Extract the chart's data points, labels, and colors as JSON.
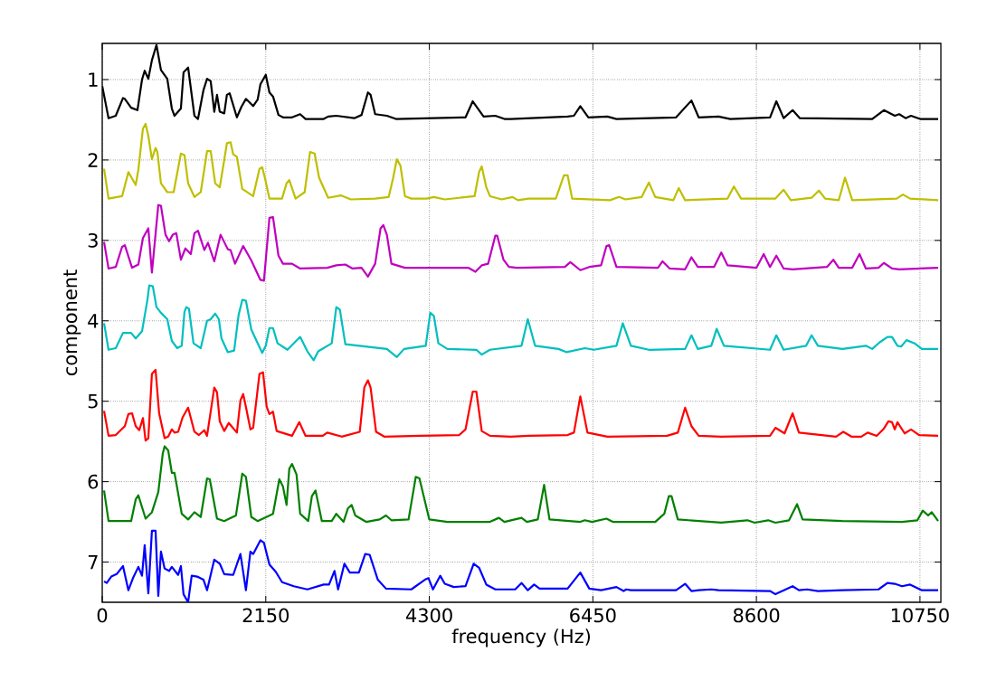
{
  "chart_data": {
    "type": "line",
    "xlabel": "frequency (Hz)",
    "ylabel": "component",
    "xlim": [
      0,
      11025
    ],
    "ylim": [
      7.5,
      0.55
    ],
    "xticks": [
      0,
      2150,
      4300,
      6450,
      8600,
      10750
    ],
    "yticks": [
      1,
      2,
      3,
      4,
      5,
      6,
      7
    ],
    "grid": true,
    "series": [
      {
        "color": "#000000",
        "x": [
          0,
          83,
          178,
          273,
          297,
          380,
          463,
          523,
          558,
          606,
          653,
          713,
          772,
          855,
          915,
          950,
          1034,
          1069,
          1129,
          1212,
          1259,
          1331,
          1378,
          1426,
          1473,
          1509,
          1545,
          1604,
          1639,
          1675,
          1770,
          1829,
          1889,
          1984,
          2043,
          2079,
          2150,
          2198,
          2245,
          2317,
          2376,
          2495,
          2602,
          2673,
          2911,
          2970,
          3077,
          3314,
          3409,
          3493,
          3528,
          3588,
          3742,
          3861,
          4776,
          4871,
          5013,
          5168,
          5287,
          5370,
          6118,
          6201,
          6285,
          6391,
          6641,
          6760,
          7544,
          7746,
          7841,
          8102,
          8257,
          8779,
          8862,
          8958,
          9076,
          9171,
          10122,
          10276,
          10419,
          10478,
          10561,
          10632,
          10751,
          10989
        ],
        "values": [
          1.08,
          1.48,
          1.45,
          1.23,
          1.24,
          1.35,
          1.38,
          1.0,
          0.89,
          0.99,
          0.76,
          0.57,
          0.88,
          0.99,
          1.36,
          1.45,
          1.36,
          0.91,
          0.85,
          1.45,
          1.49,
          1.13,
          0.99,
          1.02,
          1.4,
          1.19,
          1.4,
          1.42,
          1.19,
          1.17,
          1.47,
          1.34,
          1.24,
          1.33,
          1.25,
          1.06,
          0.94,
          1.16,
          1.21,
          1.44,
          1.47,
          1.47,
          1.43,
          1.49,
          1.49,
          1.46,
          1.45,
          1.48,
          1.44,
          1.16,
          1.19,
          1.43,
          1.45,
          1.49,
          1.47,
          1.27,
          1.46,
          1.45,
          1.49,
          1.49,
          1.46,
          1.45,
          1.33,
          1.47,
          1.46,
          1.49,
          1.47,
          1.26,
          1.47,
          1.46,
          1.49,
          1.47,
          1.27,
          1.48,
          1.38,
          1.48,
          1.49,
          1.38,
          1.45,
          1.43,
          1.48,
          1.45,
          1.49,
          1.49
        ]
      },
      {
        "color": "#bfbf00",
        "x": [
          24,
          83,
          261,
          344,
          440,
          475,
          535,
          570,
          606,
          653,
          701,
          725,
          772,
          855,
          939,
          1034,
          1081,
          1129,
          1212,
          1295,
          1378,
          1426,
          1485,
          1545,
          1604,
          1639,
          1687,
          1722,
          1770,
          1841,
          1984,
          2067,
          2103,
          2138,
          2198,
          2364,
          2423,
          2459,
          2542,
          2661,
          2732,
          2792,
          2851,
          2970,
          3136,
          3267,
          3588,
          3766,
          3825,
          3873,
          3920,
          3980,
          4063,
          4265,
          4360,
          4503,
          4895,
          4954,
          4989,
          5049,
          5097,
          5251,
          5394,
          5465,
          5607,
          5963,
          6070,
          6118,
          6178,
          6676,
          6795,
          6878,
          7092,
          7187,
          7270,
          7508,
          7579,
          7663,
          8221,
          8304,
          8399,
          8850,
          8958,
          9052,
          9326,
          9421,
          9504,
          9682,
          9765,
          9860,
          10443,
          10526,
          10621,
          10989
        ],
        "values": [
          2.11,
          2.48,
          2.45,
          2.15,
          2.31,
          2.12,
          1.61,
          1.55,
          1.7,
          1.99,
          1.85,
          1.9,
          2.29,
          2.4,
          2.4,
          1.92,
          1.94,
          2.29,
          2.46,
          2.4,
          1.89,
          1.89,
          2.29,
          2.34,
          2.0,
          1.79,
          1.78,
          1.93,
          1.96,
          2.36,
          2.45,
          2.11,
          2.09,
          2.22,
          2.48,
          2.48,
          2.29,
          2.25,
          2.48,
          2.4,
          1.9,
          1.92,
          2.22,
          2.47,
          2.44,
          2.49,
          2.48,
          2.46,
          2.22,
          1.99,
          2.07,
          2.45,
          2.48,
          2.48,
          2.46,
          2.49,
          2.45,
          2.15,
          2.08,
          2.34,
          2.45,
          2.49,
          2.46,
          2.5,
          2.48,
          2.48,
          2.19,
          2.19,
          2.48,
          2.5,
          2.46,
          2.49,
          2.46,
          2.28,
          2.46,
          2.5,
          2.35,
          2.5,
          2.48,
          2.33,
          2.48,
          2.48,
          2.37,
          2.5,
          2.47,
          2.38,
          2.48,
          2.5,
          2.22,
          2.5,
          2.48,
          2.43,
          2.48,
          2.5
        ]
      },
      {
        "color": "#bf00bf",
        "x": [
          24,
          83,
          178,
          261,
          297,
          392,
          475,
          535,
          606,
          653,
          737,
          772,
          832,
          879,
          927,
          974,
          1034,
          1093,
          1164,
          1212,
          1259,
          1342,
          1390,
          1473,
          1556,
          1651,
          1687,
          1746,
          1853,
          1960,
          2079,
          2126,
          2198,
          2245,
          2317,
          2376,
          2495,
          2602,
          2958,
          3077,
          3196,
          3291,
          3409,
          3493,
          3588,
          3659,
          3695,
          3742,
          3802,
          3980,
          4811,
          4906,
          4989,
          5073,
          5168,
          5192,
          5275,
          5346,
          5453,
          6082,
          6154,
          6285,
          6403,
          6558,
          6629,
          6665,
          6760,
          7306,
          7366,
          7461,
          7663,
          7746,
          7829,
          8043,
          8138,
          8221,
          8601,
          8696,
          8779,
          8862,
          8958,
          9076,
          9528,
          9611,
          9682,
          9860,
          9955,
          10039,
          10205,
          10276,
          10383,
          10478,
          10989
        ],
        "values": [
          3.02,
          3.35,
          3.33,
          3.08,
          3.06,
          3.34,
          3.3,
          2.97,
          2.85,
          3.4,
          2.56,
          2.57,
          2.93,
          3.01,
          2.93,
          2.91,
          3.24,
          3.1,
          3.17,
          2.91,
          2.88,
          3.12,
          3.03,
          3.26,
          2.93,
          3.11,
          3.12,
          3.29,
          3.07,
          3.25,
          3.49,
          3.5,
          2.72,
          2.71,
          3.19,
          3.29,
          3.29,
          3.35,
          3.34,
          3.31,
          3.3,
          3.35,
          3.34,
          3.45,
          3.29,
          2.85,
          2.81,
          2.93,
          3.29,
          3.34,
          3.34,
          3.39,
          3.31,
          3.29,
          2.94,
          2.94,
          3.24,
          3.33,
          3.34,
          3.33,
          3.27,
          3.37,
          3.33,
          3.31,
          3.07,
          3.06,
          3.33,
          3.34,
          3.26,
          3.35,
          3.36,
          3.21,
          3.33,
          3.33,
          3.15,
          3.31,
          3.34,
          3.17,
          3.33,
          3.19,
          3.35,
          3.36,
          3.33,
          3.24,
          3.34,
          3.34,
          3.17,
          3.35,
          3.34,
          3.28,
          3.35,
          3.36,
          3.34
        ]
      },
      {
        "color": "#00bfbf",
        "x": [
          24,
          83,
          178,
          273,
          380,
          440,
          523,
          594,
          618,
          665,
          713,
          772,
          855,
          915,
          986,
          1045,
          1081,
          1105,
          1140,
          1200,
          1295,
          1378,
          1426,
          1485,
          1533,
          1568,
          1651,
          1734,
          1794,
          1841,
          1889,
          1960,
          2103,
          2150,
          2198,
          2245,
          2305,
          2435,
          2602,
          2697,
          2780,
          2839,
          3017,
          3077,
          3124,
          3196,
          3742,
          3873,
          3968,
          4253,
          4312,
          4360,
          4419,
          4538,
          4918,
          4989,
          5097,
          5512,
          5595,
          5690,
          5999,
          6106,
          6344,
          6462,
          6760,
          6843,
          6950,
          7187,
          7663,
          7746,
          7829,
          8007,
          8078,
          8173,
          8779,
          8862,
          8958,
          9254,
          9326,
          9409,
          9730,
          10039,
          10122,
          10217,
          10323,
          10383,
          10454,
          10502,
          10573,
          10680,
          10775,
          10989
        ],
        "values": [
          4.03,
          4.36,
          4.34,
          4.15,
          4.15,
          4.22,
          4.13,
          3.74,
          3.56,
          3.57,
          3.83,
          3.9,
          3.98,
          4.25,
          4.34,
          4.31,
          3.89,
          3.83,
          3.85,
          4.28,
          4.34,
          4.0,
          3.98,
          3.91,
          3.98,
          4.22,
          4.39,
          4.37,
          3.92,
          3.74,
          3.75,
          4.11,
          4.4,
          4.31,
          4.09,
          4.09,
          4.28,
          4.36,
          4.2,
          4.38,
          4.49,
          4.38,
          4.28,
          3.83,
          3.86,
          4.29,
          4.35,
          4.45,
          4.35,
          4.31,
          3.9,
          3.94,
          4.28,
          4.35,
          4.36,
          4.42,
          4.36,
          4.31,
          3.98,
          4.31,
          4.35,
          4.39,
          4.34,
          4.36,
          4.31,
          4.03,
          4.31,
          4.36,
          4.35,
          4.18,
          4.35,
          4.31,
          4.1,
          4.31,
          4.36,
          4.18,
          4.36,
          4.31,
          4.18,
          4.31,
          4.35,
          4.31,
          4.35,
          4.27,
          4.2,
          4.2,
          4.31,
          4.32,
          4.24,
          4.28,
          4.35,
          4.35
        ]
      },
      {
        "color": "#ff0000",
        "x": [
          24,
          83,
          178,
          297,
          344,
          392,
          440,
          487,
          535,
          570,
          606,
          653,
          701,
          748,
          820,
          867,
          915,
          950,
          998,
          1057,
          1129,
          1212,
          1271,
          1342,
          1378,
          1473,
          1509,
          1545,
          1604,
          1663,
          1770,
          1817,
          1853,
          1889,
          1948,
          1984,
          2067,
          2114,
          2162,
          2198,
          2245,
          2293,
          2495,
          2590,
          2673,
          2899,
          2958,
          3148,
          3386,
          3445,
          3493,
          3528,
          3600,
          3707,
          4182,
          4693,
          4776,
          4871,
          4918,
          4989,
          5097,
          5370,
          5607,
          6118,
          6201,
          6285,
          6379,
          6641,
          7425,
          7567,
          7663,
          7746,
          7841,
          8138,
          8779,
          8850,
          8970,
          9076,
          9159,
          9647,
          9742,
          9849,
          9979,
          10062,
          10181,
          10276,
          10335,
          10383,
          10419,
          10454,
          10549,
          10632,
          10739,
          10989
        ],
        "values": [
          5.12,
          5.43,
          5.42,
          5.31,
          5.16,
          5.15,
          5.31,
          5.36,
          5.21,
          5.49,
          5.46,
          4.66,
          4.61,
          5.15,
          5.46,
          5.44,
          5.35,
          5.39,
          5.38,
          5.2,
          5.08,
          5.38,
          5.42,
          5.36,
          5.43,
          4.83,
          4.89,
          5.25,
          5.37,
          5.27,
          5.39,
          4.99,
          4.91,
          5.07,
          5.35,
          5.33,
          4.66,
          4.64,
          5.07,
          5.16,
          5.13,
          5.37,
          5.43,
          5.26,
          5.43,
          5.43,
          5.39,
          5.44,
          5.38,
          4.83,
          4.74,
          4.83,
          5.38,
          5.44,
          5.43,
          5.42,
          5.35,
          4.88,
          4.88,
          5.37,
          5.43,
          5.44,
          5.43,
          5.42,
          5.39,
          4.94,
          5.39,
          5.44,
          5.43,
          5.39,
          5.08,
          5.31,
          5.43,
          5.44,
          5.43,
          5.33,
          5.4,
          5.15,
          5.39,
          5.44,
          5.38,
          5.44,
          5.44,
          5.39,
          5.43,
          5.34,
          5.25,
          5.26,
          5.35,
          5.26,
          5.4,
          5.35,
          5.42,
          5.43
        ]
      },
      {
        "color": "#008000",
        "x": [
          24,
          83,
          380,
          440,
          475,
          570,
          653,
          737,
          796,
          820,
          867,
          915,
          950,
          1045,
          1129,
          1212,
          1295,
          1378,
          1414,
          1509,
          1604,
          1758,
          1841,
          1889,
          1960,
          2043,
          2245,
          2328,
          2376,
          2423,
          2459,
          2495,
          2554,
          2602,
          2708,
          2756,
          2804,
          2887,
          3017,
          3077,
          3172,
          3231,
          3279,
          3326,
          3469,
          3647,
          3730,
          3802,
          4027,
          4122,
          4170,
          4300,
          4538,
          5097,
          5215,
          5287,
          5512,
          5583,
          5726,
          5809,
          5880,
          6285,
          6344,
          6439,
          6629,
          6712,
          7270,
          7389,
          7449,
          7484,
          7567,
          8138,
          8482,
          8577,
          8755,
          8850,
          9029,
          9135,
          9207,
          9730,
          10514,
          10716,
          10787,
          10858,
          10905,
          10989
        ],
        "values": [
          6.11,
          6.49,
          6.49,
          6.22,
          6.17,
          6.46,
          6.38,
          6.13,
          5.65,
          5.56,
          5.61,
          5.89,
          5.89,
          6.4,
          6.47,
          6.38,
          6.44,
          5.96,
          5.97,
          6.46,
          6.49,
          6.42,
          5.9,
          5.94,
          6.44,
          6.49,
          6.4,
          5.97,
          6.06,
          6.29,
          5.84,
          5.78,
          5.91,
          6.4,
          6.49,
          6.18,
          6.11,
          6.49,
          6.49,
          6.4,
          6.5,
          6.33,
          6.29,
          6.42,
          6.5,
          6.47,
          6.42,
          6.48,
          6.47,
          5.94,
          5.96,
          6.47,
          6.5,
          6.5,
          6.45,
          6.5,
          6.45,
          6.5,
          6.47,
          6.04,
          6.47,
          6.5,
          6.48,
          6.5,
          6.46,
          6.5,
          6.5,
          6.4,
          6.18,
          6.18,
          6.47,
          6.51,
          6.48,
          6.51,
          6.48,
          6.51,
          6.48,
          6.28,
          6.47,
          6.49,
          6.5,
          6.48,
          6.36,
          6.42,
          6.38,
          6.49
        ]
      },
      {
        "color": "#0000ff",
        "x": [
          24,
          59,
          119,
          190,
          273,
          344,
          404,
          475,
          523,
          558,
          606,
          653,
          701,
          737,
          772,
          820,
          879,
          915,
          998,
          1034,
          1069,
          1129,
          1176,
          1247,
          1331,
          1378,
          1473,
          1545,
          1604,
          1722,
          1817,
          1889,
          1948,
          1984,
          2079,
          2126,
          2198,
          2281,
          2364,
          2518,
          2697,
          2911,
          2982,
          3053,
          3101,
          3184,
          3255,
          3374,
          3457,
          3516,
          3623,
          3730,
          4063,
          4241,
          4289,
          4348,
          4443,
          4503,
          4621,
          4776,
          4883,
          4954,
          5049,
          5168,
          5429,
          5512,
          5595,
          5678,
          5749,
          6118,
          6285,
          6403,
          6558,
          6760,
          6854,
          6890,
          6950,
          7544,
          7663,
          7746,
          7841,
          8007,
          8102,
          8779,
          8850,
          9076,
          9159,
          9266,
          9409,
          9730,
          10205,
          10323,
          10419,
          10514,
          10621,
          10775,
          10989
        ],
        "values": [
          7.24,
          7.26,
          7.18,
          7.15,
          7.05,
          7.35,
          7.2,
          7.06,
          7.17,
          6.79,
          7.39,
          6.61,
          6.61,
          7.42,
          6.87,
          7.08,
          7.11,
          7.06,
          7.16,
          7.05,
          7.4,
          7.5,
          7.17,
          7.18,
          7.22,
          7.35,
          6.97,
          7.02,
          7.15,
          7.16,
          6.9,
          7.35,
          6.87,
          6.9,
          6.73,
          6.76,
          7.03,
          7.12,
          7.25,
          7.3,
          7.34,
          7.28,
          7.28,
          7.11,
          7.34,
          7.02,
          7.13,
          7.13,
          6.9,
          6.91,
          7.22,
          7.33,
          7.34,
          7.22,
          7.2,
          7.34,
          7.17,
          7.27,
          7.31,
          7.3,
          7.02,
          7.07,
          7.28,
          7.34,
          7.34,
          7.26,
          7.35,
          7.28,
          7.33,
          7.33,
          7.13,
          7.33,
          7.35,
          7.31,
          7.36,
          7.34,
          7.35,
          7.35,
          7.27,
          7.36,
          7.35,
          7.34,
          7.35,
          7.36,
          7.4,
          7.3,
          7.35,
          7.34,
          7.36,
          7.35,
          7.34,
          7.26,
          7.27,
          7.3,
          7.28,
          7.35,
          7.35
        ]
      }
    ]
  }
}
